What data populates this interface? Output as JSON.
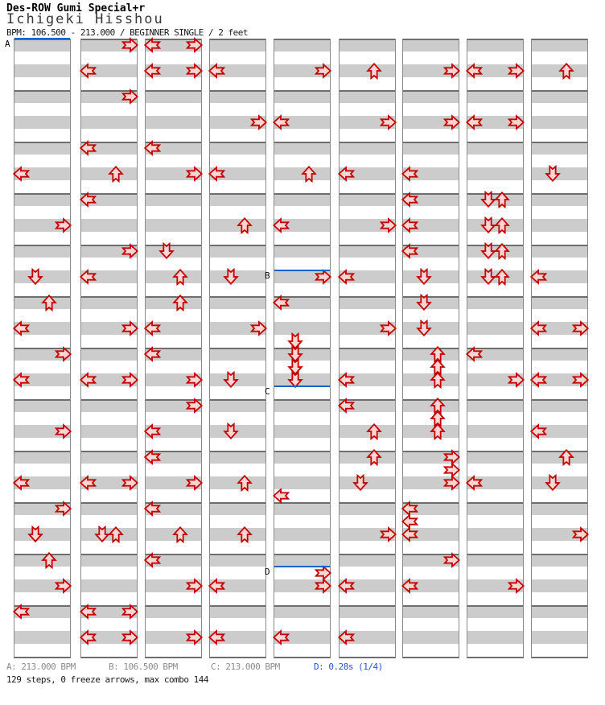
{
  "header": {
    "title": "Des-ROW Gumi Special+r",
    "song": "Ichigeki Hisshou",
    "info": "BPM: 106.500 - 213.000 / BEGINNER SINGLE / 2 feet"
  },
  "footer": {
    "markers": [
      {
        "key": "A",
        "label": "A: 213.000 BPM"
      },
      {
        "key": "B",
        "label": "B: 106.500 BPM"
      },
      {
        "key": "C",
        "label": "C: 213.000 BPM"
      },
      {
        "key": "D",
        "label": "D: 0.28s (1/4)"
      }
    ],
    "summary": "129 steps, 0 freeze arrows, max combo 144"
  },
  "colors": {
    "arrow_outline": "#c40000",
    "arrow_fill": "#ffd6d6",
    "stripe_gray": "#cccccc",
    "measure_line": "#6e6e6e",
    "column_border": "#8a8a8a",
    "marker_line_blue": "#1565c8",
    "footer_gray": "#8c8c8c",
    "footer_blue": "#2255cc"
  },
  "chart_data": {
    "type": "step-chart",
    "title": "Des-ROW Gumi Special+r",
    "song": "Ichigeki Hisshou",
    "difficulty": "BEGINNER SINGLE",
    "feet": "2 feet",
    "bpm_range": "106.500 - 213.000",
    "lanes": [
      "left",
      "down",
      "up",
      "right"
    ],
    "columns": 9,
    "measures_per_column": 12,
    "rows_per_measure": 4,
    "total_arrows": 144,
    "steps": 129,
    "freeze_arrows": 0,
    "max_combo": 144,
    "markers": [
      {
        "label": "A",
        "col": 0,
        "row": 0
      },
      {
        "label": "B",
        "col": 4,
        "row": 18
      },
      {
        "label": "C",
        "col": 4,
        "row": 27
      },
      {
        "label": "D",
        "col": 4,
        "row": 41
      }
    ],
    "arrows": [
      [
        [
          10,
          "L"
        ],
        [
          14,
          "R"
        ],
        [
          18,
          "D"
        ],
        [
          20,
          "U"
        ],
        [
          22,
          "L"
        ],
        [
          24,
          "R"
        ],
        [
          26,
          "L"
        ],
        [
          30,
          "R"
        ],
        [
          34,
          "L"
        ],
        [
          36,
          "R"
        ],
        [
          38,
          "D"
        ],
        [
          40,
          "U"
        ],
        [
          42,
          "R"
        ],
        [
          44,
          "L"
        ]
      ],
      [
        [
          0,
          "R"
        ],
        [
          2,
          "L"
        ],
        [
          4,
          "R"
        ],
        [
          8,
          "L"
        ],
        [
          10,
          "U"
        ],
        [
          12,
          "L"
        ],
        [
          16,
          "R"
        ],
        [
          18,
          "L"
        ],
        [
          22,
          "R"
        ],
        [
          26,
          "L"
        ],
        [
          26,
          "R"
        ],
        [
          34,
          "L"
        ],
        [
          34,
          "R"
        ],
        [
          38,
          "D"
        ],
        [
          38,
          "U"
        ],
        [
          44,
          "L"
        ],
        [
          44,
          "R"
        ],
        [
          46,
          "L"
        ],
        [
          46,
          "R"
        ]
      ],
      [
        [
          0,
          "L"
        ],
        [
          0,
          "R"
        ],
        [
          2,
          "L"
        ],
        [
          2,
          "R"
        ],
        [
          8,
          "L"
        ],
        [
          10,
          "R"
        ],
        [
          16,
          "D"
        ],
        [
          18,
          "U"
        ],
        [
          20,
          "U"
        ],
        [
          22,
          "L"
        ],
        [
          24,
          "L"
        ],
        [
          26,
          "R"
        ],
        [
          28,
          "R"
        ],
        [
          30,
          "L"
        ],
        [
          32,
          "L"
        ],
        [
          34,
          "R"
        ],
        [
          36,
          "L"
        ],
        [
          38,
          "U"
        ],
        [
          40,
          "L"
        ],
        [
          42,
          "R"
        ],
        [
          46,
          "R"
        ]
      ],
      [
        [
          2,
          "L"
        ],
        [
          6,
          "R"
        ],
        [
          10,
          "L"
        ],
        [
          14,
          "U"
        ],
        [
          18,
          "D"
        ],
        [
          22,
          "R"
        ],
        [
          26,
          "D"
        ],
        [
          30,
          "D"
        ],
        [
          34,
          "U"
        ],
        [
          38,
          "U"
        ],
        [
          42,
          "L"
        ],
        [
          46,
          "L"
        ]
      ],
      [
        [
          2,
          "R"
        ],
        [
          6,
          "L"
        ],
        [
          10,
          "U"
        ],
        [
          14,
          "L"
        ],
        [
          18,
          "R"
        ],
        [
          20,
          "L"
        ],
        [
          23,
          "D"
        ],
        [
          24,
          "D"
        ],
        [
          25,
          "D"
        ],
        [
          26,
          "D"
        ],
        [
          35,
          "L"
        ],
        [
          41,
          "R"
        ],
        [
          42,
          "R"
        ],
        [
          46,
          "L"
        ]
      ],
      [
        [
          2,
          "U"
        ],
        [
          6,
          "R"
        ],
        [
          10,
          "L"
        ],
        [
          14,
          "R"
        ],
        [
          18,
          "L"
        ],
        [
          22,
          "R"
        ],
        [
          26,
          "L"
        ],
        [
          28,
          "L"
        ],
        [
          30,
          "U"
        ],
        [
          32,
          "U"
        ],
        [
          34,
          "D"
        ],
        [
          38,
          "R"
        ],
        [
          42,
          "L"
        ],
        [
          46,
          "L"
        ]
      ],
      [
        [
          2,
          "R"
        ],
        [
          6,
          "R"
        ],
        [
          10,
          "L"
        ],
        [
          12,
          "L"
        ],
        [
          14,
          "L"
        ],
        [
          16,
          "L"
        ],
        [
          18,
          "D"
        ],
        [
          20,
          "D"
        ],
        [
          22,
          "D"
        ],
        [
          24,
          "U"
        ],
        [
          25,
          "U"
        ],
        [
          26,
          "U"
        ],
        [
          28,
          "U"
        ],
        [
          29,
          "U"
        ],
        [
          30,
          "U"
        ],
        [
          32,
          "R"
        ],
        [
          33,
          "R"
        ],
        [
          34,
          "R"
        ],
        [
          36,
          "L"
        ],
        [
          37,
          "L"
        ],
        [
          38,
          "L"
        ],
        [
          40,
          "R"
        ],
        [
          42,
          "L"
        ]
      ],
      [
        [
          2,
          "L"
        ],
        [
          2,
          "R"
        ],
        [
          6,
          "L"
        ],
        [
          6,
          "R"
        ],
        [
          12,
          "D"
        ],
        [
          12,
          "U"
        ],
        [
          14,
          "D"
        ],
        [
          14,
          "U"
        ],
        [
          16,
          "D"
        ],
        [
          16,
          "U"
        ],
        [
          18,
          "D"
        ],
        [
          18,
          "U"
        ],
        [
          24,
          "L"
        ],
        [
          26,
          "R"
        ],
        [
          34,
          "L"
        ],
        [
          42,
          "R"
        ]
      ],
      [
        [
          2,
          "U"
        ],
        [
          10,
          "D"
        ],
        [
          18,
          "L"
        ],
        [
          22,
          "L"
        ],
        [
          22,
          "R"
        ],
        [
          26,
          "L"
        ],
        [
          26,
          "R"
        ],
        [
          30,
          "L"
        ],
        [
          32,
          "U"
        ],
        [
          34,
          "D"
        ],
        [
          38,
          "R"
        ]
      ]
    ]
  }
}
